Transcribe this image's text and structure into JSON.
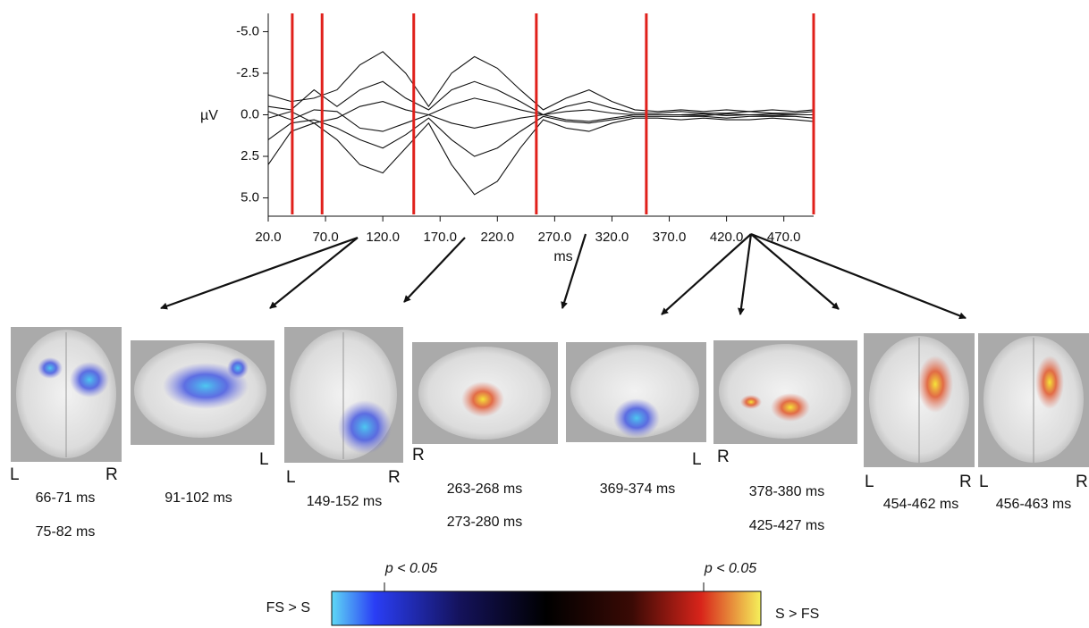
{
  "chart_data": {
    "type": "line",
    "y_label": "µV",
    "x_label": "ms",
    "xlim": [
      20,
      496
    ],
    "ylim": [
      -6.1,
      6.1
    ],
    "y_reversed": true,
    "xticks": [
      {
        "value": 20,
        "label": "20.0"
      },
      {
        "value": 70,
        "label": "70.0"
      },
      {
        "value": 120,
        "label": "120.0"
      },
      {
        "value": 170,
        "label": "170.0"
      },
      {
        "value": 220,
        "label": "220.0"
      },
      {
        "value": 270,
        "label": "270.0"
      },
      {
        "value": 320,
        "label": "320.0"
      },
      {
        "value": 370,
        "label": "370.0"
      },
      {
        "value": 420,
        "label": "420.0"
      },
      {
        "value": 470,
        "label": "470.0"
      }
    ],
    "yticks": [
      {
        "value": -5,
        "label": "-5.0"
      },
      {
        "value": -2.5,
        "label": "-2.5"
      },
      {
        "value": 0,
        "label": "0.0"
      },
      {
        "value": 2.5,
        "label": "2.5"
      },
      {
        "value": 5,
        "label": "5.0"
      }
    ],
    "markers": [
      41,
      67,
      147,
      254,
      350,
      496
    ],
    "marker_color": "#e0201b",
    "x": [
      20,
      40,
      60,
      80,
      100,
      120,
      140,
      160,
      180,
      200,
      220,
      240,
      260,
      280,
      300,
      320,
      340,
      360,
      380,
      400,
      420,
      440,
      460,
      480,
      496
    ],
    "series": [
      {
        "color": "#111111",
        "values": [
          -1.2,
          -0.8,
          -1.0,
          -1.5,
          -3.0,
          -3.8,
          -2.5,
          -0.5,
          -2.5,
          -3.5,
          -2.8,
          -1.5,
          -0.3,
          -1.0,
          -1.5,
          -0.8,
          -0.3,
          -0.2,
          -0.3,
          -0.2,
          -0.3,
          -0.2,
          -0.3,
          -0.2,
          -0.3
        ]
      },
      {
        "color": "#111111",
        "values": [
          3.0,
          1.0,
          0.5,
          1.5,
          3.0,
          3.5,
          2.0,
          0.5,
          3.0,
          4.8,
          4.0,
          2.0,
          0.3,
          0.8,
          1.0,
          0.5,
          0.2,
          0.2,
          0.3,
          0.2,
          0.3,
          0.3,
          0.2,
          0.3,
          0.4
        ]
      },
      {
        "color": "#111111",
        "values": [
          -0.5,
          -0.3,
          -1.5,
          -0.5,
          -1.5,
          -2.0,
          -1.0,
          -0.3,
          -1.5,
          -2.0,
          -1.5,
          -0.8,
          0,
          -0.5,
          -0.8,
          -0.4,
          -0.1,
          -0.1,
          -0.2,
          -0.1,
          -0.1,
          -0.2,
          -0.1,
          -0.1,
          -0.2
        ]
      },
      {
        "color": "#111111",
        "values": [
          1.5,
          0.5,
          0.3,
          0.8,
          1.5,
          2.0,
          1.2,
          0.2,
          1.5,
          2.5,
          2.0,
          1.0,
          0.1,
          0.4,
          0.5,
          0.3,
          0.1,
          0.1,
          0.1,
          0.1,
          0.2,
          0.1,
          0.1,
          0.1,
          0.2
        ]
      },
      {
        "color": "#111111",
        "values": [
          0.2,
          -0.2,
          0.5,
          0.2,
          -0.5,
          -0.8,
          -0.3,
          0,
          0.5,
          0.8,
          0.5,
          0.2,
          0,
          -0.2,
          -0.3,
          -0.1,
          0,
          0,
          0,
          0.05,
          -0.05,
          0,
          0.05,
          0,
          0
        ]
      },
      {
        "color": "#111111",
        "values": [
          -0.2,
          0.3,
          -0.3,
          -0.2,
          0.8,
          1.0,
          0.5,
          0,
          -0.6,
          -1.0,
          -0.7,
          -0.3,
          0,
          0.3,
          0.4,
          0.2,
          0,
          0,
          0,
          -0.05,
          0.05,
          0,
          -0.05,
          0,
          0
        ]
      }
    ]
  },
  "panels": [
    {
      "labels": [
        "L",
        "R"
      ],
      "times": [
        "66-71 ms",
        "75-82 ms"
      ]
    },
    {
      "labels": [
        "L"
      ],
      "times": [
        "91-102 ms"
      ]
    },
    {
      "labels": [
        "L",
        "R"
      ],
      "times": [
        "149-152 ms"
      ]
    },
    {
      "labels": [
        "R"
      ],
      "times": [
        "263-268 ms",
        "273-280 ms"
      ]
    },
    {
      "labels": [
        "L"
      ],
      "times": [
        "369-374 ms"
      ]
    },
    {
      "labels": [
        "R"
      ],
      "times": [
        "378-380 ms",
        "425-427 ms"
      ]
    },
    {
      "labels": [
        "L",
        "R"
      ],
      "times": [
        "454-462 ms"
      ]
    },
    {
      "labels": [
        "L",
        "R"
      ],
      "times": [
        "456-463 ms"
      ]
    }
  ],
  "colorbar": {
    "left_label": "FS > S",
    "right_label": "S > FS",
    "left_threshold": "p < 0.05",
    "right_threshold": "p < 0.05"
  }
}
